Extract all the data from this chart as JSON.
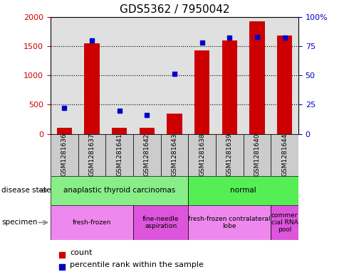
{
  "title": "GDS5362 / 7950042",
  "samples": [
    "GSM1281636",
    "GSM1281637",
    "GSM1281641",
    "GSM1281642",
    "GSM1281643",
    "GSM1281638",
    "GSM1281639",
    "GSM1281640",
    "GSM1281644"
  ],
  "counts": [
    100,
    1550,
    100,
    100,
    350,
    1430,
    1600,
    1920,
    1680
  ],
  "percentiles": [
    22,
    80,
    20,
    16,
    51,
    78,
    82,
    83,
    82
  ],
  "ylim_left": [
    0,
    2000
  ],
  "ylim_right": [
    0,
    100
  ],
  "yticks_left": [
    0,
    500,
    1000,
    1500,
    2000
  ],
  "yticks_right": [
    0,
    25,
    50,
    75,
    100
  ],
  "bar_color": "#cc0000",
  "dot_color": "#0000cc",
  "disease_state": [
    {
      "label": "anaplastic thyroid carcinomas",
      "start": 0,
      "end": 5,
      "color": "#88ee88"
    },
    {
      "label": "normal",
      "start": 5,
      "end": 9,
      "color": "#55ee55"
    }
  ],
  "specimen": [
    {
      "label": "fresh-frozen",
      "start": 0,
      "end": 3,
      "color": "#ee88ee"
    },
    {
      "label": "fine-needle\naspiration",
      "start": 3,
      "end": 5,
      "color": "#dd55dd"
    },
    {
      "label": "fresh-frozen contralateral\nlobe",
      "start": 5,
      "end": 8,
      "color": "#ee88ee"
    },
    {
      "label": "commer\ncial RNA\npool",
      "start": 8,
      "end": 9,
      "color": "#dd55dd"
    }
  ],
  "legend_count_label": "count",
  "legend_percentile_label": "percentile rank within the sample",
  "left_ylabel_color": "#cc0000",
  "right_ylabel_color": "#0000cc",
  "plot_bg_color": "#e0e0e0",
  "sample_box_color": "#cccccc",
  "grid_color": "black",
  "grid_style": "dotted",
  "bar_width": 0.55,
  "dot_marker": "s",
  "dot_size": 5
}
